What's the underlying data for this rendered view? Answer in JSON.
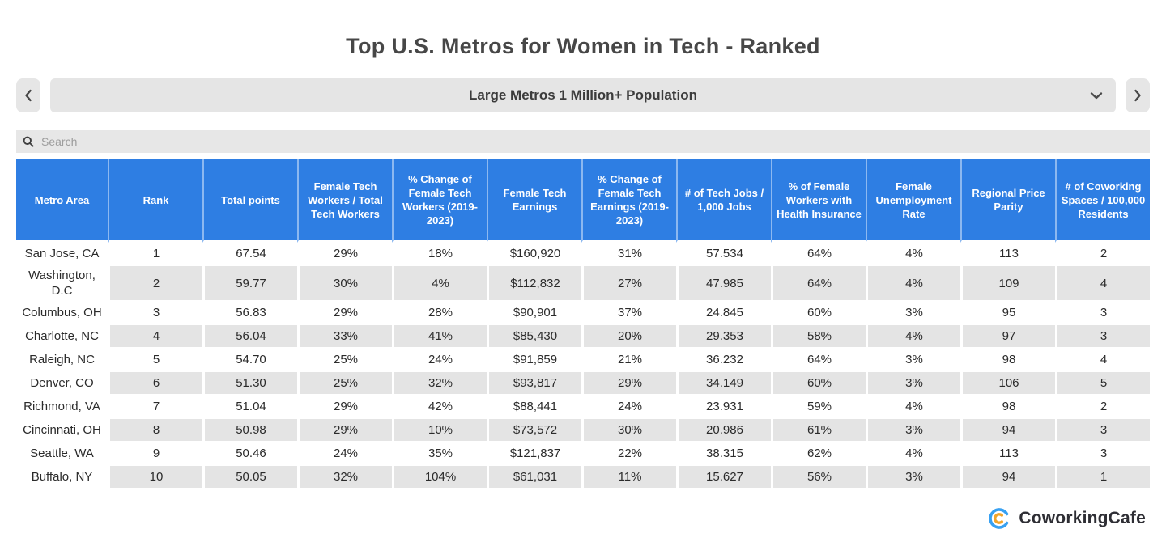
{
  "title": "Top U.S. Metros for Women in Tech - Ranked",
  "filter_bar": {
    "selected_option": "Large Metros 1 Million+ Population"
  },
  "search": {
    "placeholder": "Search"
  },
  "table": {
    "columns": [
      "Metro Area",
      "Rank",
      "Total points",
      "Female Tech Workers / Total Tech Workers",
      "% Change of Female Tech Workers (2019-2023)",
      "Female Tech Earnings",
      "% Change of Female Tech Earnings (2019-2023)",
      "# of Tech Jobs / 1,000 Jobs",
      "% of Female Workers with Health Insurance",
      "Female Unemployment Rate",
      "Regional Price Parity",
      "# of Coworking Spaces / 100,000 Residents"
    ],
    "rows": [
      [
        "San Jose, CA",
        "1",
        "67.54",
        "29%",
        "18%",
        "$160,920",
        "31%",
        "57.534",
        "64%",
        "4%",
        "113",
        "2"
      ],
      [
        "Washington, D.C",
        "2",
        "59.77",
        "30%",
        "4%",
        "$112,832",
        "27%",
        "47.985",
        "64%",
        "4%",
        "109",
        "4"
      ],
      [
        "Columbus, OH",
        "3",
        "56.83",
        "29%",
        "28%",
        "$90,901",
        "37%",
        "24.845",
        "60%",
        "3%",
        "95",
        "3"
      ],
      [
        "Charlotte, NC",
        "4",
        "56.04",
        "33%",
        "41%",
        "$85,430",
        "20%",
        "29.353",
        "58%",
        "4%",
        "97",
        "3"
      ],
      [
        "Raleigh, NC",
        "5",
        "54.70",
        "25%",
        "24%",
        "$91,859",
        "21%",
        "36.232",
        "64%",
        "3%",
        "98",
        "4"
      ],
      [
        "Denver, CO",
        "6",
        "51.30",
        "25%",
        "32%",
        "$93,817",
        "29%",
        "34.149",
        "60%",
        "3%",
        "106",
        "5"
      ],
      [
        "Richmond, VA",
        "7",
        "51.04",
        "29%",
        "42%",
        "$88,441",
        "24%",
        "23.931",
        "59%",
        "4%",
        "98",
        "2"
      ],
      [
        "Cincinnati, OH",
        "8",
        "50.98",
        "29%",
        "10%",
        "$73,572",
        "30%",
        "20.986",
        "61%",
        "3%",
        "94",
        "3"
      ],
      [
        "Seattle, WA",
        "9",
        "50.46",
        "24%",
        "35%",
        "$121,837",
        "22%",
        "38.315",
        "62%",
        "4%",
        "113",
        "3"
      ],
      [
        "Buffalo, NY",
        "10",
        "50.05",
        "32%",
        "104%",
        "$61,031",
        "11%",
        "15.627",
        "56%",
        "3%",
        "94",
        "1"
      ]
    ]
  },
  "footer": {
    "brand": "CoworkingCafe"
  },
  "colors": {
    "header_blue": "#2e7ee3",
    "stripe_gray": "#e4e4e4",
    "control_gray": "#e6e6e6",
    "logo_blue": "#38a1f2",
    "logo_orange": "#f2a62c"
  }
}
